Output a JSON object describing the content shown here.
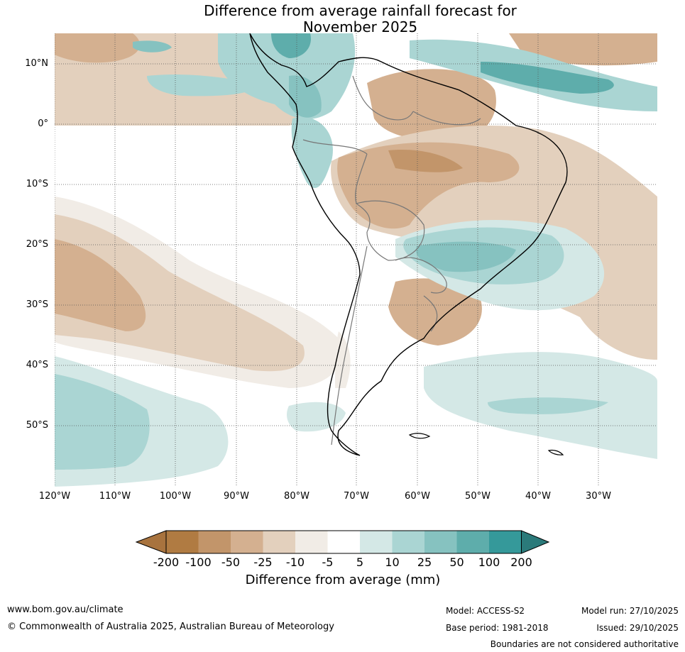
{
  "title": {
    "line1": "Difference from average rainfall forecast for",
    "line2": "November 2025"
  },
  "map": {
    "lat_labels": [
      "10°N",
      "0°",
      "10°S",
      "20°S",
      "30°S",
      "40°S",
      "50°S"
    ],
    "lon_labels": [
      "120°W",
      "110°W",
      "100°W",
      "90°W",
      "80°W",
      "70°W",
      "60°W",
      "50°W",
      "40°W",
      "30°W"
    ]
  },
  "legend": {
    "ticks": [
      "-200",
      "-100",
      "-50",
      "-25",
      "-10",
      "-5",
      "5",
      "10",
      "25",
      "50",
      "100",
      "200"
    ],
    "colors": [
      "#a8733e",
      "#b07b42",
      "#c2956a",
      "#d4b090",
      "#e3d0bd",
      "#f1ece6",
      "#ffffff",
      "#d4e8e6",
      "#aad5d3",
      "#86c2c0",
      "#5eadab",
      "#35999a",
      "#2b7a7a"
    ],
    "title": "Difference from average (mm)"
  },
  "footer": {
    "website": "www.bom.gov.au/climate",
    "copyright": "© Commonwealth of Australia 2025, Australian Bureau of Meteorology",
    "model": "Model: ACCESS-S2",
    "base_period": "Base period: 1981-2018",
    "model_run": "Model run: 27/10/2025",
    "issued": "Issued: 29/10/2025",
    "disclaimer": "Boundaries are not considered authoritative"
  }
}
